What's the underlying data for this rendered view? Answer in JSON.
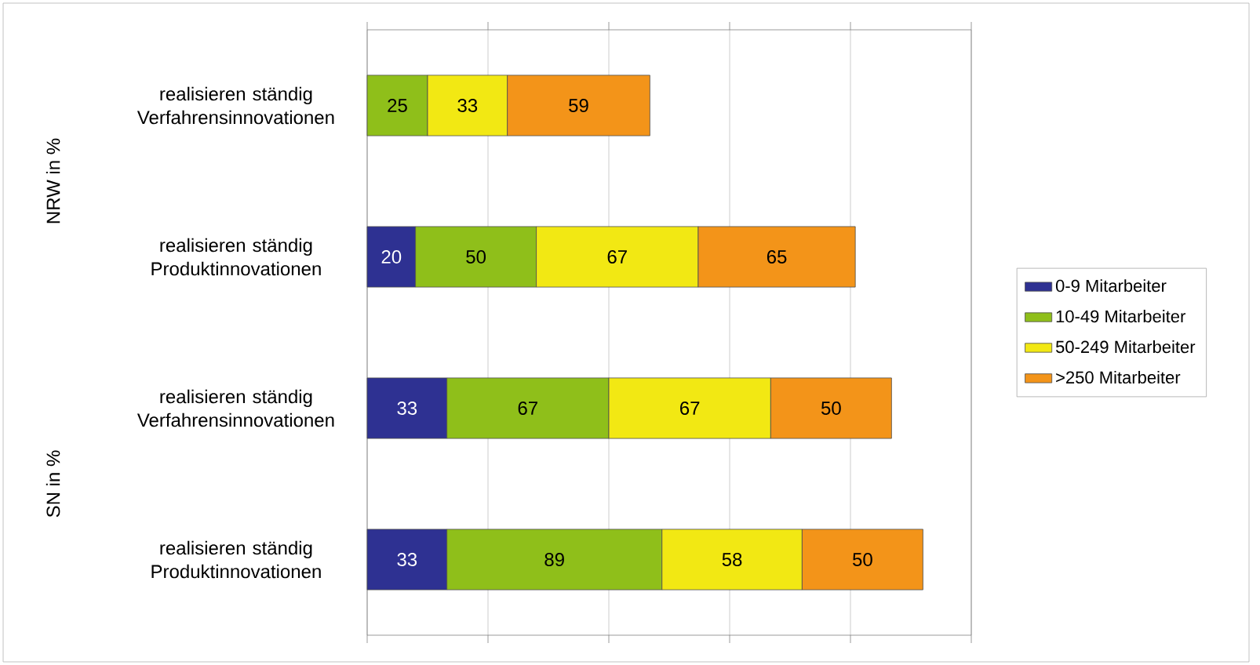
{
  "chart_data": {
    "type": "bar",
    "orientation": "horizontal",
    "stacked": true,
    "categories": [
      "realisieren ständig Verfahrensinnovationen",
      "realisieren ständig Produktinnovationen",
      "realisieren ständig Verfahrensinnovationen",
      "realisieren ständig Produktinnovationen"
    ],
    "series": [
      {
        "name": "0-9 Mitarbeiter",
        "color": "#2e3192",
        "values": [
          null,
          20,
          33,
          33
        ]
      },
      {
        "name": "10-49 Mitarbeiter",
        "color": "#8fbf1a",
        "values": [
          25,
          50,
          67,
          89
        ]
      },
      {
        "name": "50-249 Mitarbeiter",
        "color": "#f2e813",
        "values": [
          33,
          67,
          67,
          58
        ]
      },
      {
        "name": ">250 Mitarbeiter",
        "color": "#f39419",
        "values": [
          59,
          65,
          50,
          50
        ]
      }
    ],
    "xlim": [
      0,
      250
    ],
    "xticks": [
      {
        "value": 0,
        "label": null
      },
      {
        "value": 50,
        "label": null
      },
      {
        "value": 100,
        "label": null
      },
      {
        "value": 150,
        "label": null
      },
      {
        "value": 200,
        "label": null
      },
      {
        "value": 250,
        "label": null
      }
    ],
    "annotations": [
      "NRW in %",
      "SN in %"
    ],
    "data_labels": true,
    "grid": "x",
    "legend": "right",
    "tick_labels": "y"
  }
}
